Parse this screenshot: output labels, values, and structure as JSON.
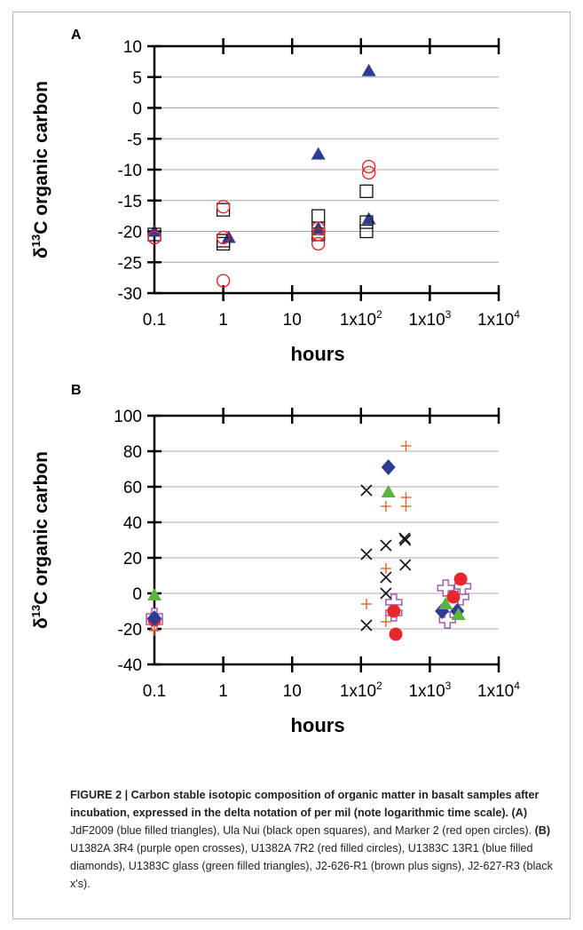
{
  "figure": {
    "panel_a_label": "A",
    "panel_b_label": "B",
    "caption": {
      "title": "FIGURE 2 | Carbon stable isotopic composition of organic matter in basalt samples after incubation, expressed in the delta notation of per mil (note logarithmic time scale).",
      "label_a": "(A)",
      "text_a": " JdF2009 (blue filled triangles), Ula Nui (black open squares), and Marker 2 (red open circles). ",
      "label_b": "(B)",
      "text_b": " U1382A 3R4 (purple open crosses), U1382A 7R2 (red filled circles), U1383C 13R1 (blue filled diamonds), U1383C glass (green filled triangles), J2-626-R1 (brown plus signs), J2-627-R3 (black x's)."
    }
  },
  "colors": {
    "blue": "#2e3d91",
    "red": "#e8262b",
    "black": "#111111",
    "green": "#5db33e",
    "purple": "#9a5fb0",
    "brown": "#e26524"
  },
  "chart_data": [
    {
      "type": "scatter",
      "panel": "A",
      "x_scale": "log",
      "xlim": [
        0.1,
        10000
      ],
      "ylim": [
        -30,
        10
      ],
      "xlabel": "hours",
      "ylabel": "δ13C organic carbon",
      "x_tick_values": [
        0.1,
        1,
        10,
        100,
        1000,
        10000
      ],
      "x_tick_labels": [
        "0.1",
        "1",
        "10",
        "1x10^2",
        "1x10^3",
        "1x10^4"
      ],
      "y_ticks": [
        10,
        5,
        0,
        -5,
        -10,
        -15,
        -20,
        -25,
        -30
      ],
      "y_tick_labels": [
        "10",
        "5",
        "0",
        "-5",
        "-10",
        "-15",
        "-20",
        "-25",
        "-30"
      ],
      "grid": "horizontal",
      "series": [
        {
          "marker": "filled-triangle",
          "color": "blue",
          "points": [
            [
              0.1,
              -20
            ],
            [
              1.2,
              -21
            ],
            [
              24,
              -7.5
            ],
            [
              24,
              -19.5
            ],
            [
              130,
              6
            ],
            [
              130,
              -18
            ]
          ]
        },
        {
          "marker": "open-square",
          "color": "black",
          "points": [
            [
              0.1,
              -20.5
            ],
            [
              1,
              -16.5
            ],
            [
              1,
              -21.5
            ],
            [
              1,
              -22
            ],
            [
              24,
              -17.5
            ],
            [
              24,
              -19.5
            ],
            [
              24,
              -20.5
            ],
            [
              120,
              -13.5
            ],
            [
              120,
              -18.5
            ],
            [
              120,
              -20
            ]
          ]
        },
        {
          "marker": "open-circle",
          "color": "red",
          "points": [
            [
              0.1,
              -21
            ],
            [
              1,
              -16
            ],
            [
              1,
              -21
            ],
            [
              1,
              -28
            ],
            [
              24,
              -19.5
            ],
            [
              24,
              -20.5
            ],
            [
              24,
              -22
            ],
            [
              130,
              -9.5
            ],
            [
              130,
              -10.5
            ]
          ]
        }
      ]
    },
    {
      "type": "scatter",
      "panel": "B",
      "x_scale": "log",
      "xlim": [
        0.1,
        10000
      ],
      "ylim": [
        -40,
        100
      ],
      "xlabel": "hours",
      "ylabel": "δ13C organic carbon",
      "x_tick_values": [
        0.1,
        1,
        10,
        100,
        1000,
        10000
      ],
      "x_tick_labels": [
        "0.1",
        "1",
        "10",
        "1x10^2",
        "1x10^3",
        "1x10^4"
      ],
      "y_ticks": [
        100,
        80,
        60,
        40,
        20,
        0,
        -20,
        -40
      ],
      "y_tick_labels": [
        "100",
        "80",
        "60",
        "40",
        "20",
        "0",
        "-20",
        "-40"
      ],
      "grid": "horizontal",
      "series": [
        {
          "marker": "open-cross",
          "color": "purple",
          "points": [
            [
              0.1,
              -13
            ],
            [
              0.1,
              -16
            ],
            [
              300,
              -5
            ],
            [
              300,
              -11
            ],
            [
              1700,
              3
            ],
            [
              1800,
              -15
            ],
            [
              2800,
              -2
            ],
            [
              3000,
              4
            ]
          ]
        },
        {
          "marker": "filled-circle",
          "color": "red",
          "points": [
            [
              0.1,
              -15
            ],
            [
              300,
              -10
            ],
            [
              320,
              -23
            ],
            [
              2200,
              -2
            ],
            [
              2800,
              8
            ]
          ]
        },
        {
          "marker": "filled-diamond",
          "color": "blue",
          "points": [
            [
              0.1,
              -14
            ],
            [
              250,
              71
            ],
            [
              1500,
              -10
            ],
            [
              2500,
              -10
            ]
          ]
        },
        {
          "marker": "filled-triangle",
          "color": "green",
          "points": [
            [
              0.1,
              -1
            ],
            [
              250,
              57
            ],
            [
              1700,
              -6
            ],
            [
              2600,
              -12
            ]
          ]
        },
        {
          "marker": "plus",
          "color": "brown",
          "points": [
            [
              0.1,
              -21
            ],
            [
              120,
              -6
            ],
            [
              230,
              49
            ],
            [
              230,
              14
            ],
            [
              230,
              -16
            ],
            [
              450,
              83
            ],
            [
              450,
              54
            ],
            [
              450,
              49
            ]
          ]
        },
        {
          "marker": "x",
          "color": "black",
          "points": [
            [
              120,
              22
            ],
            [
              120,
              58
            ],
            [
              120,
              -18
            ],
            [
              230,
              27
            ],
            [
              230,
              9
            ],
            [
              230,
              0
            ],
            [
              430,
              31
            ],
            [
              440,
              30
            ],
            [
              440,
              16
            ]
          ]
        }
      ]
    }
  ]
}
